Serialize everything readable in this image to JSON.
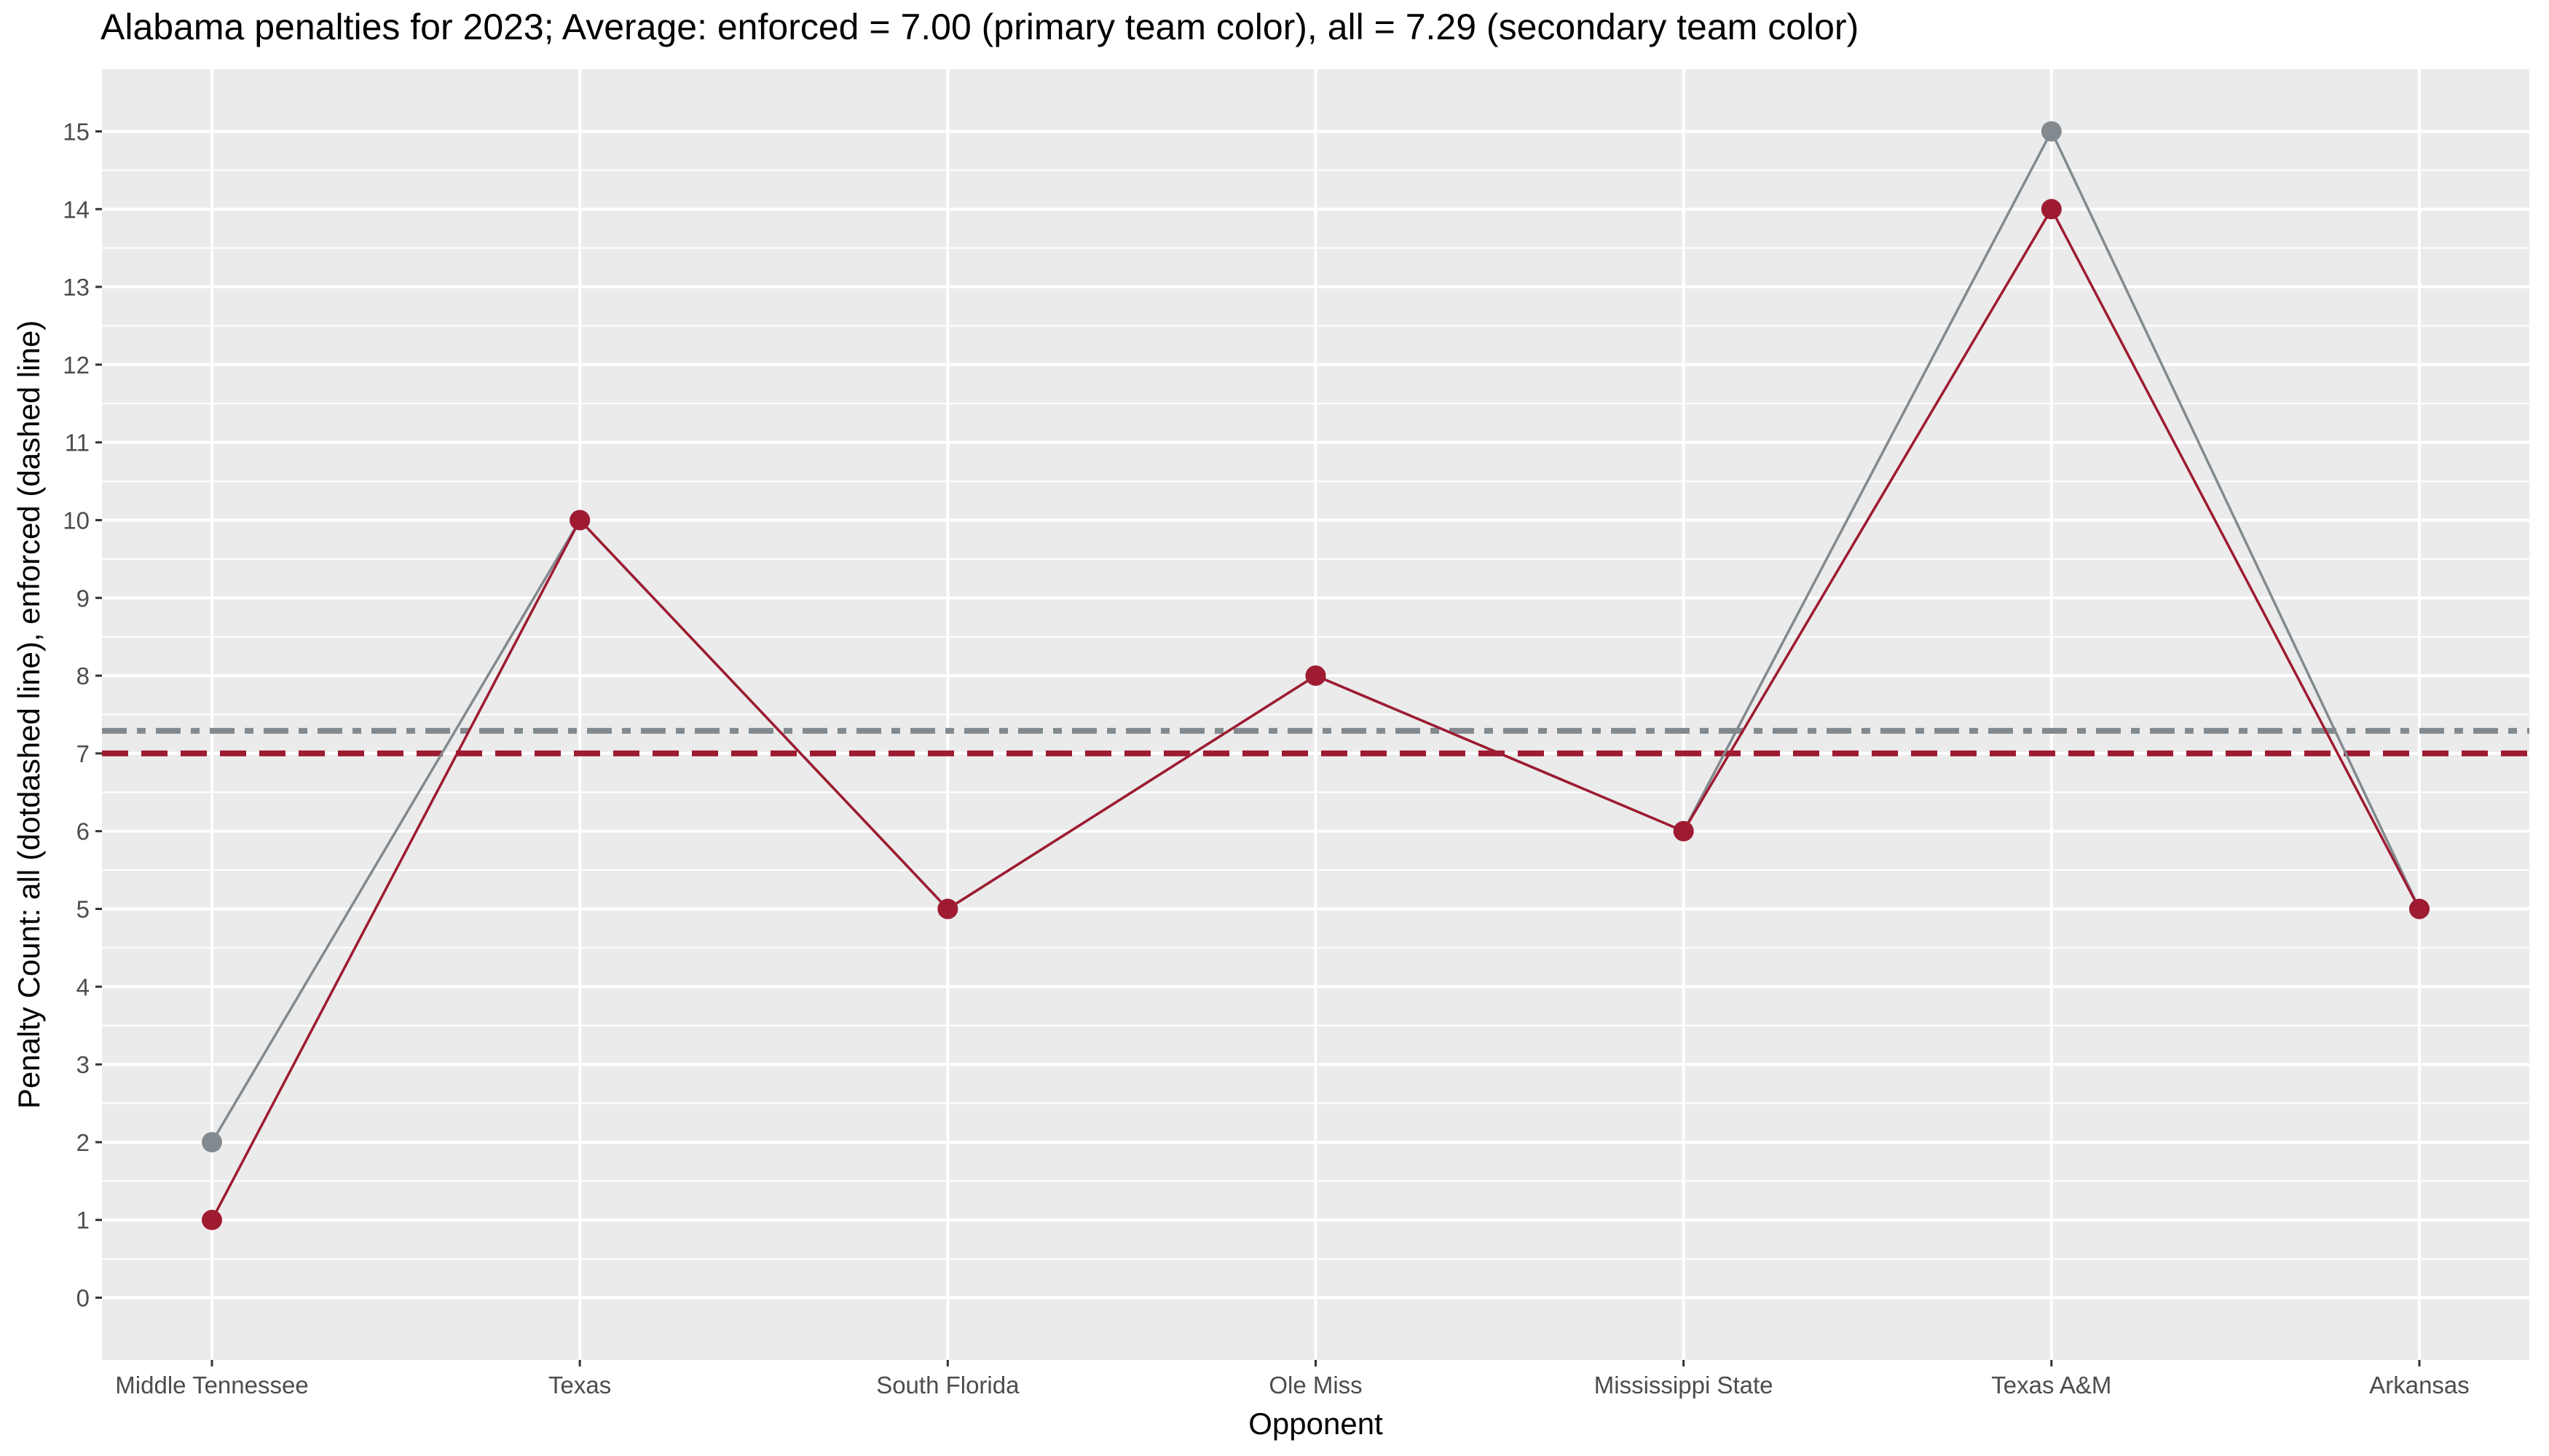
{
  "chart_data": {
    "type": "line",
    "title": "Alabama penalties for 2023; Average: enforced = 7.00 (primary team color), all = 7.29 (secondary team color)",
    "xlabel": "Opponent",
    "ylabel": "Penalty Count: all (dotdashed line), enforced (dashed line)",
    "categories": [
      "Middle Tennessee",
      "Texas",
      "South Florida",
      "Ole Miss",
      "Mississippi State",
      "Texas A&M",
      "Arkansas"
    ],
    "series": [
      {
        "key": "all",
        "values": [
          2,
          10,
          5,
          8,
          6,
          15,
          5
        ],
        "color": "#828a8f"
      },
      {
        "key": "enforced",
        "values": [
          1,
          10,
          5,
          8,
          6,
          14,
          5
        ],
        "color": "#9e1b32"
      }
    ],
    "reference_lines": [
      {
        "key": "all_average",
        "value": 7.29,
        "style": "dotdashed",
        "color": "#828a8f"
      },
      {
        "key": "enforced_average",
        "value": 7.0,
        "style": "dashed",
        "color": "#9e1b32"
      }
    ],
    "ylim": [
      -0.8,
      15.8
    ],
    "yticks": [
      0,
      1,
      2,
      3,
      4,
      5,
      6,
      7,
      8,
      9,
      10,
      11,
      12,
      13,
      14,
      15
    ],
    "grid": true,
    "panel_background": "#ebebeb",
    "legend": "none"
  }
}
